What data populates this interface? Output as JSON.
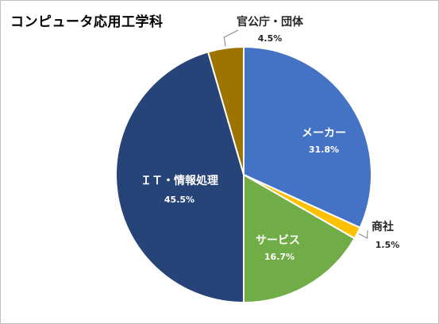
{
  "chart_data": {
    "type": "pie",
    "title": "コンピュータ応用工学科",
    "slices": [
      {
        "label": "メーカー",
        "pct_label": "31.8%",
        "value": 31.8,
        "color": "#4472C4",
        "label_position": "inside"
      },
      {
        "label": "商社",
        "pct_label": "1.5%",
        "value": 1.5,
        "color": "#FFC000",
        "label_position": "outside"
      },
      {
        "label": "サービス",
        "pct_label": "16.7%",
        "value": 16.7,
        "color": "#70AD47",
        "label_position": "inside"
      },
      {
        "label": "ＩＴ・情報処理",
        "pct_label": "45.5%",
        "value": 45.5,
        "color": "#264478",
        "label_position": "inside"
      },
      {
        "label": "官公庁・団体",
        "pct_label": "4.5%",
        "value": 4.5,
        "color": "#9E7400",
        "label_position": "outside"
      }
    ],
    "legend": "none"
  }
}
